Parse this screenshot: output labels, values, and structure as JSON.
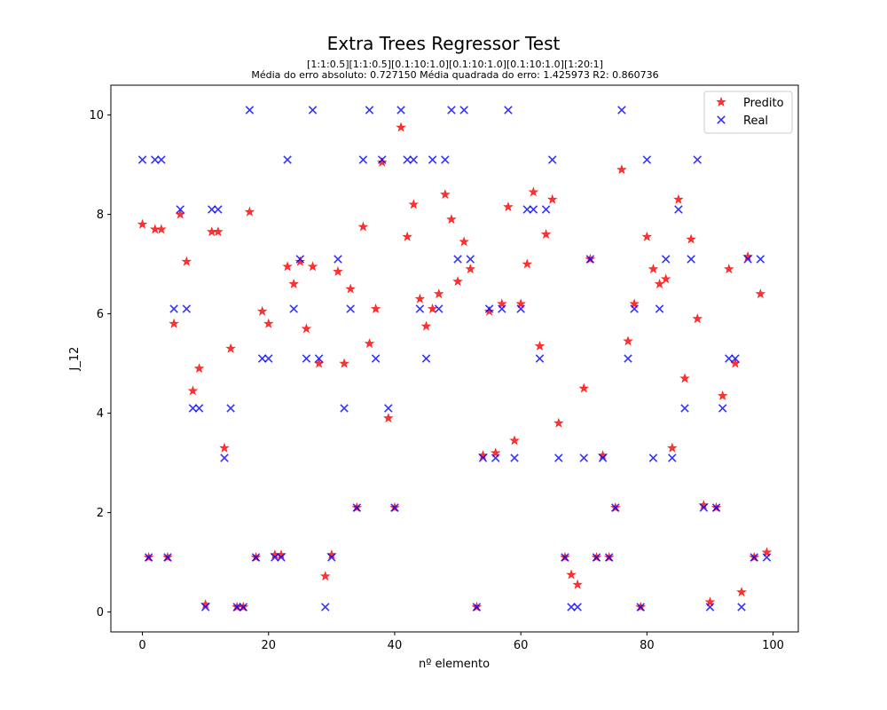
{
  "chart_data": {
    "type": "scatter",
    "title": "Extra Trees Regressor Test",
    "subtitle_line1": "[1:1:0.5][1:1:0.5][0.1:10:1.0][0.1:10:1.0][0.1:10:1.0][1:20:1]",
    "subtitle_line2": "Média do erro absoluto: 0.727150 Média quadrada do erro: 1.425973 R2: 0.860736",
    "xlabel": "nº elemento",
    "ylabel": "J_12",
    "xlim": [
      -5,
      104
    ],
    "ylim": [
      -0.4,
      10.6
    ],
    "xticks": [
      0,
      20,
      40,
      60,
      80,
      100
    ],
    "yticks": [
      0,
      2,
      4,
      6,
      8,
      10
    ],
    "legend_position": "upper-right",
    "colors": {
      "predito": "#ff0000",
      "real": "#0000ff"
    },
    "series": [
      {
        "name": "Predito",
        "marker": "star",
        "values": [
          7.8,
          1.1,
          7.7,
          7.7,
          1.1,
          5.8,
          8.0,
          7.05,
          4.45,
          4.9,
          0.15,
          7.65,
          7.65,
          3.3,
          5.3,
          0.1,
          0.1,
          8.05,
          1.1,
          6.05,
          5.8,
          1.15,
          1.15,
          6.95,
          6.6,
          7.05,
          5.7,
          6.95,
          5.0,
          0.72,
          1.15,
          6.85,
          5.0,
          6.5,
          2.1,
          7.75,
          5.4,
          6.1,
          9.05,
          3.9,
          2.1,
          9.75,
          7.55,
          8.2,
          6.3,
          5.75,
          6.1,
          6.4,
          8.4,
          7.9,
          6.65,
          7.45,
          6.9,
          0.1,
          3.15,
          6.05,
          3.2,
          6.2,
          8.15,
          3.45,
          6.2,
          7.0,
          8.45,
          5.35,
          7.6,
          8.3,
          3.8,
          1.1,
          0.75,
          0.55,
          4.5,
          7.1,
          1.1,
          3.15,
          1.1,
          2.1,
          8.9,
          5.45,
          6.2,
          0.1,
          7.55,
          6.9,
          6.6,
          6.7,
          3.3,
          8.3,
          4.7,
          7.5,
          5.9,
          2.15,
          0.2,
          2.1,
          4.35,
          6.9,
          5.0,
          0.4,
          7.15,
          1.1,
          6.4,
          1.2
        ]
      },
      {
        "name": "Real",
        "marker": "x",
        "values": [
          9.1,
          1.1,
          9.1,
          9.1,
          1.1,
          6.1,
          8.1,
          6.1,
          4.1,
          4.1,
          0.1,
          8.1,
          8.1,
          3.1,
          4.1,
          0.1,
          0.1,
          10.1,
          1.1,
          5.1,
          5.1,
          1.1,
          1.1,
          9.1,
          6.1,
          7.1,
          5.1,
          10.1,
          5.1,
          0.1,
          1.1,
          7.1,
          4.1,
          6.1,
          2.1,
          9.1,
          10.1,
          5.1,
          9.1,
          4.1,
          2.1,
          10.1,
          9.1,
          9.1,
          6.1,
          5.1,
          9.1,
          6.1,
          9.1,
          10.1,
          7.1,
          10.1,
          7.1,
          0.1,
          3.1,
          6.1,
          3.1,
          6.1,
          10.1,
          3.1,
          6.1,
          8.1,
          8.1,
          5.1,
          8.1,
          9.1,
          3.1,
          1.1,
          0.1,
          0.1,
          3.1,
          7.1,
          1.1,
          3.1,
          1.1,
          2.1,
          10.1,
          5.1,
          6.1,
          0.1,
          9.1,
          3.1,
          6.1,
          7.1,
          3.1,
          8.1,
          4.1,
          7.1,
          9.1,
          2.1,
          0.1,
          2.1,
          4.1,
          5.1,
          5.1,
          0.1,
          7.1,
          1.1,
          7.1,
          1.1
        ]
      }
    ]
  }
}
